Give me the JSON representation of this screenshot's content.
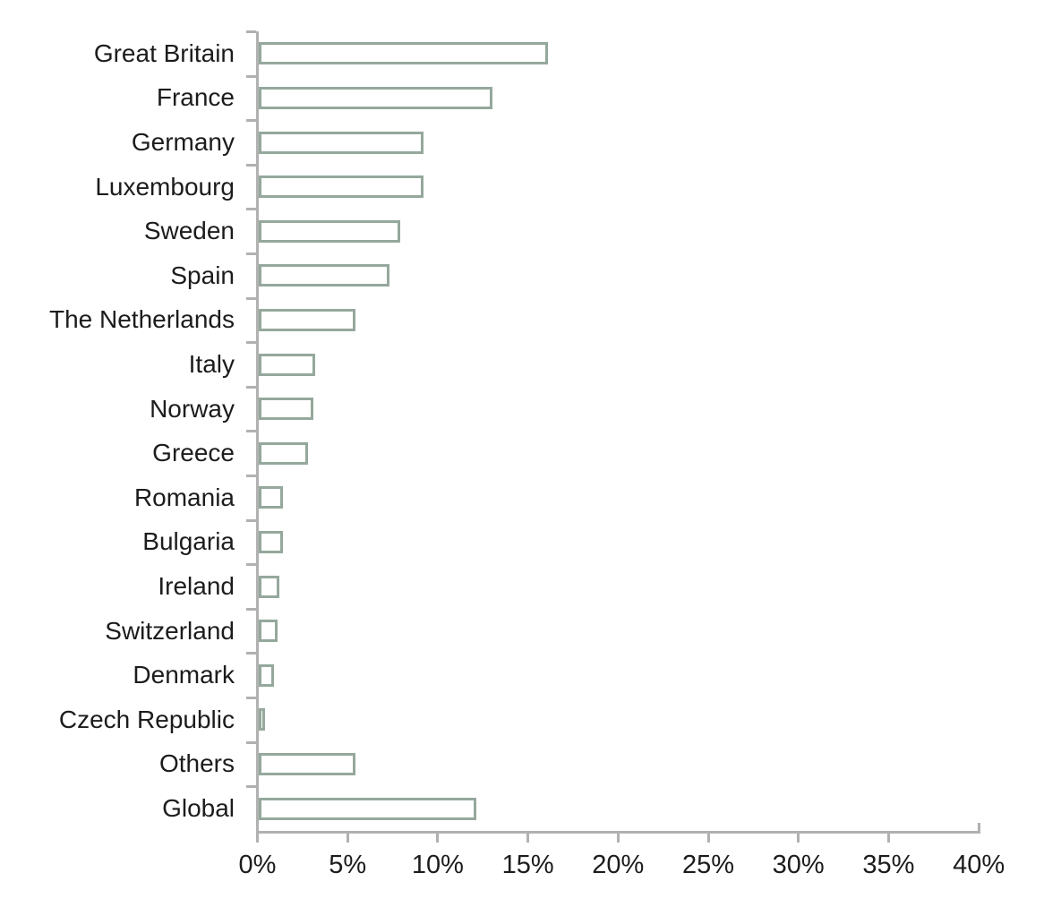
{
  "chart_data": {
    "type": "bar",
    "orientation": "horizontal",
    "title": "",
    "xlabel": "",
    "ylabel": "",
    "unit": "%",
    "grid": false,
    "legend": false,
    "categories": [
      "Great Britain",
      "France",
      "Germany",
      "Luxembourg",
      "Sweden",
      "Spain",
      "The Netherlands",
      "Italy",
      "Norway",
      "Greece",
      "Romania",
      "Bulgaria",
      "Ireland",
      "Switzerland",
      "Denmark",
      "Czech Republic",
      "Others",
      "Global"
    ],
    "values": [
      16.1,
      13.0,
      9.2,
      9.2,
      7.9,
      7.3,
      5.4,
      3.2,
      3.1,
      2.8,
      1.4,
      1.4,
      1.2,
      1.1,
      0.9,
      0.4,
      5.4,
      12.1
    ],
    "xlim": [
      0,
      40
    ],
    "x_tick_values": [
      0,
      5,
      10,
      15,
      20,
      25,
      30,
      35,
      40
    ],
    "x_tick_labels": [
      "0%",
      "5%",
      "10%",
      "15%",
      "20%",
      "25%",
      "30%",
      "35%",
      "40%"
    ],
    "colors": {
      "bar_fill": "#ffffff",
      "bar_border": "#95a89c",
      "axis": "#b1b1b1",
      "text": "#1c1c1c",
      "background": "#ffffff"
    }
  }
}
